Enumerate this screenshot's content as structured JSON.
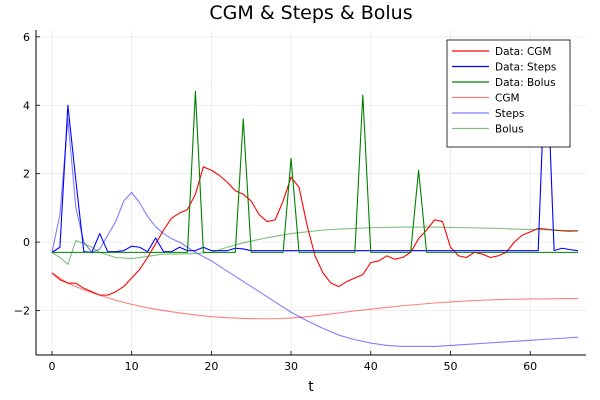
{
  "chart_data": {
    "type": "line",
    "title": "CGM & Steps & Bolus",
    "xlabel": "t",
    "ylabel": "",
    "xlim": [
      -2,
      67
    ],
    "ylim": [
      -3.3,
      6.2
    ],
    "xticks": [
      0,
      10,
      20,
      30,
      40,
      50,
      60
    ],
    "yticks": [
      -2,
      0,
      2,
      4,
      6
    ],
    "grid": true,
    "legend_position": "top-right",
    "series": [
      {
        "name": "Data: CGM",
        "color": "#ff0000",
        "opacity": 1,
        "x": [
          0,
          1,
          2,
          3,
          4,
          5,
          6,
          7,
          8,
          9,
          10,
          11,
          12,
          13,
          14,
          15,
          16,
          17,
          18,
          19,
          20,
          21,
          22,
          23,
          24,
          25,
          26,
          27,
          28,
          29,
          30,
          31,
          32,
          33,
          34,
          35,
          36,
          37,
          38,
          39,
          40,
          41,
          42,
          43,
          44,
          45,
          46,
          47,
          48,
          49,
          50,
          51,
          52,
          53,
          54,
          55,
          56,
          57,
          58,
          59,
          60,
          61,
          62,
          63,
          64,
          65,
          66
        ],
        "values": [
          -0.9,
          -1.1,
          -1.2,
          -1.2,
          -1.35,
          -1.45,
          -1.55,
          -1.55,
          -1.45,
          -1.3,
          -1.05,
          -0.8,
          -0.45,
          -0.05,
          0.35,
          0.7,
          0.85,
          0.95,
          1.4,
          2.2,
          2.1,
          1.95,
          1.75,
          1.5,
          1.4,
          1.2,
          0.8,
          0.6,
          0.65,
          1.2,
          1.9,
          1.6,
          0.5,
          -0.4,
          -0.9,
          -1.2,
          -1.3,
          -1.15,
          -1.05,
          -0.95,
          -0.6,
          -0.55,
          -0.4,
          -0.5,
          -0.45,
          -0.3,
          0.1,
          0.35,
          0.65,
          0.6,
          -0.15,
          -0.4,
          -0.45,
          -0.3,
          -0.35,
          -0.45,
          -0.4,
          -0.3,
          0.0,
          0.2,
          0.3,
          0.4,
          0.38,
          0.35,
          0.33,
          0.32,
          0.33
        ]
      },
      {
        "name": "Data: Steps",
        "color": "#0000ff",
        "opacity": 1,
        "x": [
          0,
          1,
          2,
          3,
          4,
          5,
          6,
          7,
          8,
          9,
          10,
          11,
          12,
          13,
          14,
          15,
          16,
          17,
          18,
          19,
          20,
          21,
          22,
          23,
          24,
          25,
          26,
          27,
          28,
          29,
          30,
          31,
          32,
          33,
          34,
          35,
          36,
          37,
          38,
          39,
          40,
          41,
          42,
          43,
          44,
          45,
          46,
          47,
          48,
          49,
          50,
          51,
          52,
          53,
          54,
          55,
          56,
          57,
          58,
          59,
          60,
          61,
          62,
          63,
          64,
          65,
          66
        ],
        "values": [
          -0.3,
          -0.15,
          4.0,
          1.8,
          -0.28,
          -0.3,
          0.25,
          -0.28,
          -0.28,
          -0.25,
          -0.12,
          -0.15,
          -0.28,
          0.12,
          -0.28,
          -0.28,
          -0.15,
          -0.25,
          -0.25,
          -0.15,
          -0.25,
          -0.25,
          -0.25,
          -0.18,
          -0.2,
          -0.25,
          -0.25,
          -0.25,
          -0.25,
          -0.25,
          -0.25,
          -0.25,
          -0.25,
          -0.25,
          -0.25,
          -0.25,
          -0.25,
          -0.25,
          -0.25,
          -0.25,
          -0.25,
          -0.25,
          -0.25,
          -0.25,
          -0.25,
          -0.25,
          -0.25,
          -0.25,
          -0.25,
          -0.25,
          -0.25,
          -0.25,
          -0.25,
          -0.25,
          -0.25,
          -0.25,
          -0.25,
          -0.25,
          -0.25,
          -0.25,
          -0.25,
          -0.25,
          5.9,
          -0.25,
          -0.18,
          -0.22,
          -0.25
        ]
      },
      {
        "name": "Data: Bolus",
        "color": "#008000",
        "opacity": 1,
        "x": [
          0,
          1,
          2,
          3,
          4,
          5,
          6,
          7,
          8,
          9,
          10,
          11,
          12,
          13,
          14,
          15,
          16,
          17,
          18,
          19,
          20,
          21,
          22,
          23,
          24,
          25,
          26,
          27,
          28,
          29,
          30,
          31,
          32,
          33,
          34,
          35,
          36,
          37,
          38,
          39,
          40,
          41,
          42,
          43,
          44,
          45,
          46,
          47,
          48,
          49,
          50,
          51,
          52,
          53,
          54,
          55,
          56,
          57,
          58,
          59,
          60,
          61,
          62,
          63,
          64,
          65,
          66
        ],
        "values": [
          -0.3,
          -0.3,
          -0.3,
          -0.3,
          -0.3,
          -0.3,
          -0.3,
          -0.3,
          -0.3,
          -0.3,
          -0.3,
          -0.3,
          -0.3,
          -0.3,
          -0.3,
          -0.3,
          -0.3,
          -0.3,
          4.4,
          -0.3,
          -0.3,
          -0.3,
          -0.3,
          -0.3,
          3.6,
          -0.3,
          -0.3,
          -0.3,
          -0.3,
          -0.3,
          2.45,
          -0.3,
          -0.3,
          -0.3,
          -0.3,
          -0.3,
          -0.3,
          -0.3,
          -0.3,
          4.3,
          -0.3,
          -0.3,
          -0.3,
          -0.3,
          -0.3,
          -0.3,
          2.1,
          -0.3,
          -0.3,
          -0.3,
          -0.3,
          -0.3,
          -0.3,
          -0.3,
          -0.3,
          -0.3,
          -0.3,
          -0.3,
          -0.3,
          -0.3,
          -0.3,
          -0.3,
          -0.3,
          -0.3,
          -0.3,
          -0.3,
          -0.3
        ]
      },
      {
        "name": "CGM",
        "color": "#ff0000",
        "opacity": 0.5,
        "x": [
          0,
          2,
          4,
          6,
          8,
          10,
          12,
          14,
          16,
          18,
          20,
          22,
          24,
          26,
          28,
          30,
          32,
          34,
          36,
          38,
          40,
          42,
          44,
          46,
          48,
          50,
          52,
          54,
          56,
          58,
          60,
          62,
          64,
          66
        ],
        "values": [
          -0.9,
          -1.2,
          -1.4,
          -1.55,
          -1.7,
          -1.82,
          -1.92,
          -2.0,
          -2.07,
          -2.13,
          -2.18,
          -2.21,
          -2.23,
          -2.24,
          -2.24,
          -2.22,
          -2.18,
          -2.13,
          -2.07,
          -2.01,
          -1.96,
          -1.91,
          -1.86,
          -1.82,
          -1.78,
          -1.75,
          -1.72,
          -1.7,
          -1.68,
          -1.67,
          -1.66,
          -1.66,
          -1.65,
          -1.65
        ]
      },
      {
        "name": "Steps",
        "color": "#0000ff",
        "opacity": 0.5,
        "x": [
          0,
          1,
          2,
          3,
          4,
          5,
          6,
          7,
          8,
          9,
          10,
          11,
          12,
          13,
          14,
          15,
          16,
          17,
          18,
          20,
          22,
          24,
          26,
          28,
          30,
          32,
          34,
          36,
          38,
          40,
          42,
          44,
          46,
          48,
          50,
          52,
          54,
          56,
          58,
          60,
          62,
          64,
          66
        ],
        "values": [
          -0.3,
          0.8,
          3.6,
          1.0,
          0.0,
          -0.3,
          -0.2,
          0.2,
          0.6,
          1.2,
          1.45,
          1.15,
          0.75,
          0.45,
          0.25,
          0.1,
          0.0,
          -0.15,
          -0.3,
          -0.55,
          -0.85,
          -1.15,
          -1.45,
          -1.75,
          -2.05,
          -2.3,
          -2.52,
          -2.72,
          -2.85,
          -2.95,
          -3.02,
          -3.05,
          -3.05,
          -3.05,
          -3.02,
          -2.99,
          -2.96,
          -2.93,
          -2.9,
          -2.87,
          -2.84,
          -2.81,
          -2.78
        ]
      },
      {
        "name": "Bolus",
        "color": "#008000",
        "opacity": 0.5,
        "x": [
          0,
          1,
          2,
          3,
          4,
          5,
          6,
          8,
          10,
          12,
          14,
          16,
          18,
          20,
          22,
          24,
          26,
          28,
          30,
          32,
          34,
          36,
          38,
          40,
          42,
          44,
          46,
          48,
          50,
          52,
          54,
          56,
          58,
          60,
          62,
          64,
          66
        ],
        "values": [
          -0.3,
          -0.45,
          -0.65,
          0.05,
          -0.05,
          -0.15,
          -0.3,
          -0.45,
          -0.48,
          -0.42,
          -0.35,
          -0.35,
          -0.33,
          -0.3,
          -0.15,
          -0.02,
          0.08,
          0.17,
          0.25,
          0.3,
          0.35,
          0.38,
          0.4,
          0.42,
          0.43,
          0.44,
          0.44,
          0.44,
          0.43,
          0.42,
          0.41,
          0.4,
          0.38,
          0.37,
          0.36,
          0.34,
          0.33
        ]
      }
    ]
  }
}
